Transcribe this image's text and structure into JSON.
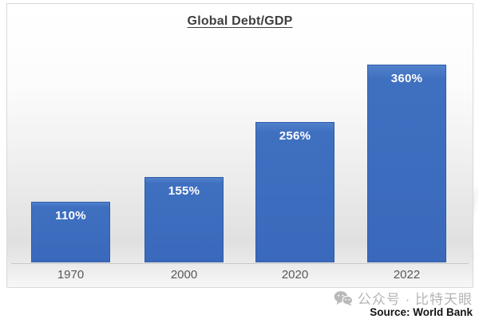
{
  "chart_data": {
    "type": "bar",
    "title": "Global Debt/GDP",
    "categories": [
      "1970",
      "2000",
      "2020",
      "2022"
    ],
    "values": [
      110,
      155,
      256,
      360
    ],
    "value_labels": [
      "110%",
      "155%",
      "256%",
      "360%"
    ],
    "ylabel": "",
    "xlabel": "",
    "ylim": [
      0,
      380
    ],
    "grid": false,
    "legend": false,
    "bar_color": "#3d6dbe",
    "bar_border_color": "#2e5dab",
    "value_label_color": "#ffffff",
    "axis_label_color": "#595959",
    "title_color": "#3f3f3f",
    "panel_background": "white-to-gray vertical gradient"
  },
  "watermark": {
    "icon": "wechat-icon",
    "text": "公众号 · 比特天眼",
    "source": "Source: World Bank",
    "text_color": "#b5b5b5",
    "source_color": "#141414"
  }
}
